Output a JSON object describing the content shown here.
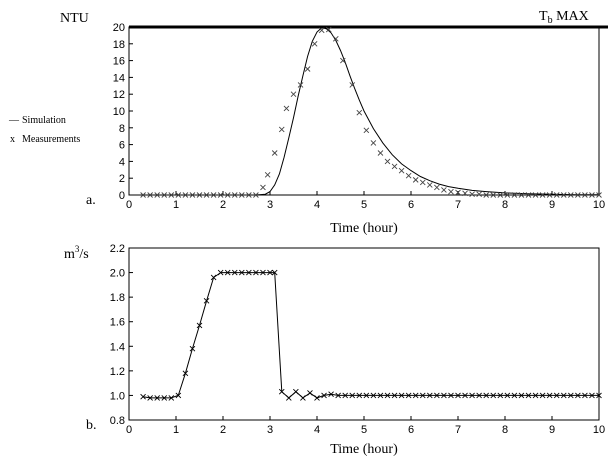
{
  "chart_data": [
    {
      "type": "line",
      "panel_label": "a.",
      "ylabel": "NTU",
      "xlabel": "Time (hour)",
      "xlim": [
        0,
        10
      ],
      "ylim": [
        0,
        20
      ],
      "xticks": [
        0,
        1,
        2,
        3,
        4,
        5,
        6,
        7,
        8,
        9,
        10
      ],
      "yticks": [
        0,
        2,
        4,
        6,
        8,
        10,
        12,
        14,
        16,
        18,
        20
      ],
      "threshold": {
        "label_main": "T",
        "label_sub": "b",
        "label_rest": " MAX",
        "value": 20
      },
      "legend": {
        "simulation": "Simulation",
        "measurements": "Measurements",
        "simulation_marker": "—",
        "measurements_marker": "x"
      },
      "series": [
        {
          "name": "Simulation",
          "style": "line",
          "x": [
            2.7,
            2.9,
            3.0,
            3.1,
            3.2,
            3.3,
            3.4,
            3.5,
            3.6,
            3.7,
            3.8,
            3.9,
            4.0,
            4.1,
            4.2,
            4.3,
            4.4,
            4.5,
            4.6,
            4.7,
            4.8,
            4.9,
            5.0,
            5.2,
            5.4,
            5.6,
            5.8,
            6.0,
            6.2,
            6.4,
            6.6,
            6.8,
            7.0,
            7.3,
            7.6,
            8.0,
            8.5,
            9.0,
            9.5,
            10.0
          ],
          "y": [
            0,
            0.1,
            0.4,
            1.2,
            2.5,
            4.5,
            6.8,
            9.2,
            11.8,
            14.2,
            16.5,
            18.3,
            19.4,
            19.9,
            19.8,
            19.3,
            18.4,
            17.2,
            15.8,
            14.2,
            12.7,
            11.3,
            10.0,
            7.9,
            6.2,
            4.8,
            3.7,
            2.9,
            2.2,
            1.7,
            1.3,
            1.0,
            0.8,
            0.55,
            0.4,
            0.25,
            0.15,
            0.08,
            0.04,
            0.02
          ]
        },
        {
          "name": "Measurements",
          "style": "x",
          "x": [
            0.3,
            0.45,
            0.6,
            0.75,
            0.9,
            1.05,
            1.2,
            1.35,
            1.5,
            1.65,
            1.8,
            1.95,
            2.1,
            2.25,
            2.4,
            2.55,
            2.7,
            2.85,
            2.95,
            3.1,
            3.25,
            3.35,
            3.5,
            3.65,
            3.8,
            3.95,
            4.1,
            4.25,
            4.4,
            4.55,
            4.75,
            4.9,
            5.05,
            5.2,
            5.35,
            5.5,
            5.65,
            5.8,
            5.95,
            6.1,
            6.25,
            6.4,
            6.55,
            6.7,
            6.85,
            7.0,
            7.15,
            7.3,
            7.45,
            7.6,
            7.75,
            7.9,
            8.05,
            8.2,
            8.35,
            8.5,
            8.65,
            8.8,
            8.95,
            9.1,
            9.25,
            9.4,
            9.55,
            9.7,
            9.85,
            10.0
          ],
          "y": [
            0,
            0,
            0,
            0,
            0,
            0,
            0,
            0,
            0,
            0,
            0,
            0,
            0,
            0,
            0,
            0,
            0,
            0.9,
            2.4,
            5.0,
            7.8,
            10.3,
            12.0,
            13.1,
            15.0,
            18.0,
            19.6,
            19.7,
            18.6,
            16.0,
            13.1,
            9.8,
            7.7,
            6.2,
            5.0,
            4.0,
            3.4,
            2.9,
            2.3,
            1.8,
            1.5,
            1.2,
            0.9,
            0.6,
            0.4,
            0.3,
            0.2,
            0.1,
            0.1,
            0,
            0,
            0,
            0,
            0,
            0,
            0,
            0,
            0,
            0,
            0,
            0,
            0,
            0,
            0,
            0,
            0
          ]
        }
      ]
    },
    {
      "type": "line",
      "panel_label": "b.",
      "ylabel_main": "m",
      "ylabel_sup": "3",
      "ylabel_rest": "/s",
      "xlabel": "Time (hour)",
      "xlim": [
        0,
        10
      ],
      "ylim": [
        0.8,
        2.2
      ],
      "xticks": [
        0,
        1,
        2,
        3,
        4,
        5,
        6,
        7,
        8,
        9,
        10
      ],
      "yticks": [
        0.8,
        1.0,
        1.2,
        1.4,
        1.6,
        1.8,
        2.0,
        2.2
      ],
      "series": [
        {
          "style": "line+x",
          "x": [
            0.3,
            0.45,
            0.6,
            0.75,
            0.9,
            1.05,
            1.2,
            1.35,
            1.5,
            1.65,
            1.8,
            1.95,
            2.1,
            2.25,
            2.4,
            2.55,
            2.7,
            2.85,
            3.0,
            3.1,
            3.25,
            3.4,
            3.55,
            3.7,
            3.85,
            4.0,
            4.15,
            4.3,
            4.45,
            4.6,
            4.75,
            4.9,
            5.05,
            5.2,
            5.35,
            5.5,
            5.65,
            5.8,
            5.95,
            6.1,
            6.25,
            6.4,
            6.55,
            6.7,
            6.85,
            7.0,
            7.15,
            7.3,
            7.45,
            7.6,
            7.75,
            7.9,
            8.05,
            8.2,
            8.35,
            8.5,
            8.65,
            8.8,
            8.95,
            9.1,
            9.25,
            9.4,
            9.55,
            9.7,
            9.85,
            10.0
          ],
          "y": [
            0.99,
            0.98,
            0.98,
            0.98,
            0.98,
            1.0,
            1.18,
            1.38,
            1.57,
            1.77,
            1.96,
            2.0,
            2.0,
            2.0,
            2.0,
            2.0,
            2.0,
            2.0,
            2.0,
            2.0,
            1.03,
            0.98,
            1.03,
            0.98,
            1.02,
            0.98,
            1.0,
            1.01,
            1.0,
            1.0,
            1.0,
            1.0,
            1.0,
            1.0,
            1.0,
            1.0,
            1.0,
            1.0,
            1.0,
            1.0,
            1.0,
            1.0,
            1.0,
            1.0,
            1.0,
            1.0,
            1.0,
            1.0,
            1.0,
            1.0,
            1.0,
            1.0,
            1.0,
            1.0,
            1.0,
            1.0,
            1.0,
            1.0,
            1.0,
            1.0,
            1.0,
            1.0,
            1.0,
            1.0,
            1.0,
            1.0
          ]
        }
      ]
    }
  ]
}
